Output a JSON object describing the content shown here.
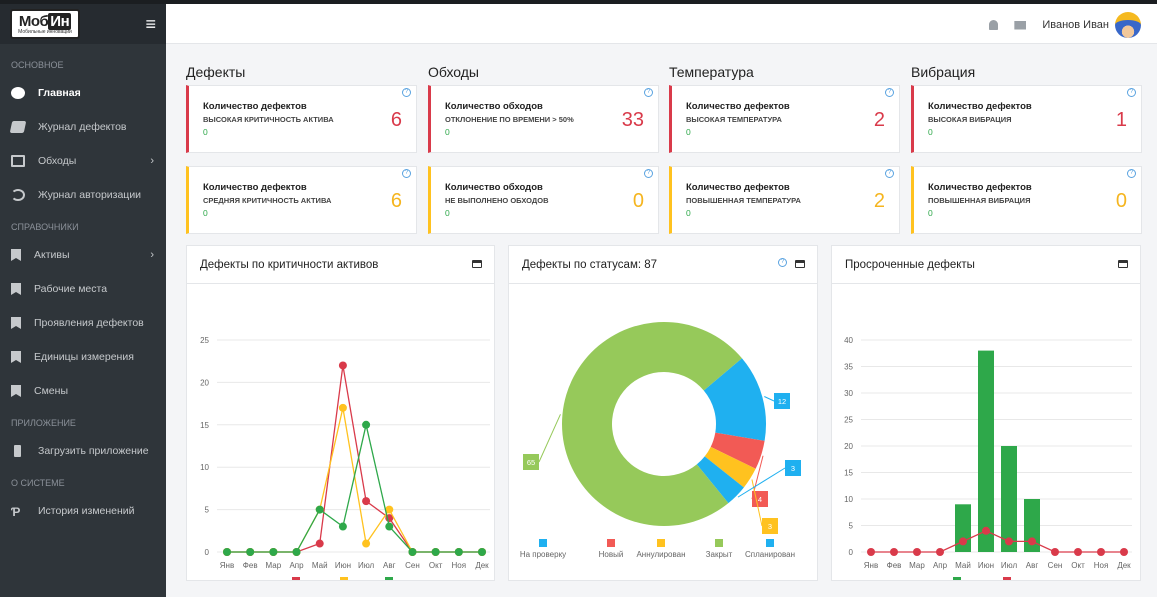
{
  "brand": {
    "logo_line1_a": "Моб",
    "logo_line1_b": "Ин",
    "logo_line2": "Мобильные инновации"
  },
  "header": {
    "user": "Иванов Иван"
  },
  "sidebar": {
    "section_main": "ОСНОВНОЕ",
    "items_main": [
      {
        "label": "Главная"
      },
      {
        "label": "Журнал дефектов"
      },
      {
        "label": "Обходы"
      },
      {
        "label": "Журнал авторизации"
      }
    ],
    "section_ref": "СПРАВОЧНИКИ",
    "items_ref": [
      {
        "label": "Активы"
      },
      {
        "label": "Рабочие места"
      },
      {
        "label": "Проявления дефектов"
      },
      {
        "label": "Единицы измерения"
      },
      {
        "label": "Смены"
      }
    ],
    "section_app": "ПРИЛОЖЕНИЕ",
    "items_app": [
      {
        "label": "Загрузить приложение"
      }
    ],
    "section_sys": "О СИСТЕМЕ",
    "items_sys": [
      {
        "label": "История изменений"
      }
    ]
  },
  "columns": [
    "Дефекты",
    "Обходы",
    "Температура",
    "Вибрация"
  ],
  "cards": [
    {
      "title": "Количество дефектов",
      "subtitle": "ВЫСОКАЯ КРИТИЧНОСТЬ АКТИВА",
      "delta": "0",
      "value": "6"
    },
    {
      "title": "Количество обходов",
      "subtitle": "ОТКЛОНЕНИЕ ПО ВРЕМЕНИ > 50%",
      "delta": "0",
      "value": "33"
    },
    {
      "title": "Количество дефектов",
      "subtitle": "ВЫСОКАЯ ТЕМПЕРАТУРА",
      "delta": "0",
      "value": "2"
    },
    {
      "title": "Количество дефектов",
      "subtitle": "ВЫСОКАЯ ВИБРАЦИЯ",
      "delta": "0",
      "value": "1"
    },
    {
      "title": "Количество дефектов",
      "subtitle": "СРЕДНЯЯ КРИТИЧНОСТЬ АКТИВА",
      "delta": "0",
      "value": "6"
    },
    {
      "title": "Количество обходов",
      "subtitle": "НЕ ВЫПОЛНЕНО ОБХОДОВ",
      "delta": "0",
      "value": "0"
    },
    {
      "title": "Количество дефектов",
      "subtitle": "ПОВЫШЕННАЯ ТЕМПЕРАТУРА",
      "delta": "0",
      "value": "2"
    },
    {
      "title": "Количество дефектов",
      "subtitle": "ПОВЫШЕННАЯ ВИБРАЦИЯ",
      "delta": "0",
      "value": "0"
    }
  ],
  "panels": {
    "p1": "Дефекты по критичности активов",
    "p2": "Дефекты по статусам: 87",
    "p3": "Просроченные дефекты"
  },
  "colors": {
    "red": "#d93a4a",
    "yellow": "#ffc21f",
    "green": "#2ea84a",
    "blue": "#1fb0f0",
    "lime": "#96c95a"
  },
  "chart_data": [
    {
      "type": "line",
      "categories": [
        "Янв",
        "Фев",
        "Мар",
        "Апр",
        "Май",
        "Июн",
        "Июл",
        "Авг",
        "Сен",
        "Окт",
        "Ноя",
        "Дек"
      ],
      "ylim": [
        0,
        25
      ],
      "yticks": [
        0,
        5,
        10,
        15,
        20,
        25
      ],
      "series": [
        {
          "name": "Высокая",
          "color": "#d93a4a",
          "values": [
            0,
            0,
            0,
            0,
            1,
            22,
            6,
            4,
            0,
            0,
            0,
            0
          ]
        },
        {
          "name": "Средняя",
          "color": "#ffc21f",
          "values": [
            0,
            0,
            0,
            0,
            5,
            17,
            1,
            5,
            0,
            0,
            0,
            0
          ]
        },
        {
          "name": "Низкая",
          "color": "#2ea84a",
          "values": [
            0,
            0,
            0,
            0,
            5,
            3,
            15,
            3,
            0,
            0,
            0,
            0
          ]
        }
      ]
    },
    {
      "type": "pie",
      "slices": [
        {
          "name": "На проверку",
          "value": 12,
          "color": "#1fb0f0"
        },
        {
          "name": "Новый",
          "value": 4,
          "color": "#f25a55"
        },
        {
          "name": "Аннулирован",
          "value": 3,
          "color": "#ffc21f"
        },
        {
          "name": "Закрыт",
          "value": 65,
          "color": "#96c95a"
        },
        {
          "name": "Спланирован",
          "value": 3,
          "color": "#1fb0f0"
        }
      ]
    },
    {
      "type": "bar",
      "categories": [
        "Янв",
        "Фев",
        "Мар",
        "Апр",
        "Май",
        "Июн",
        "Июл",
        "Авг",
        "Сен",
        "Окт",
        "Ноя",
        "Дек"
      ],
      "ylim": [
        0,
        40
      ],
      "yticks": [
        0,
        5,
        10,
        15,
        20,
        25,
        30,
        35,
        40
      ],
      "series": [
        {
          "name": "Норма",
          "color": "#2ea84a",
          "values": [
            0,
            0,
            0,
            0,
            9,
            38,
            20,
            10,
            0,
            0,
            0,
            0
          ]
        },
        {
          "name": "Просрочено",
          "color": "#d93a4a",
          "values": [
            0,
            0,
            0,
            0,
            2,
            4,
            2,
            2,
            0,
            0,
            0,
            0
          ]
        }
      ]
    }
  ]
}
